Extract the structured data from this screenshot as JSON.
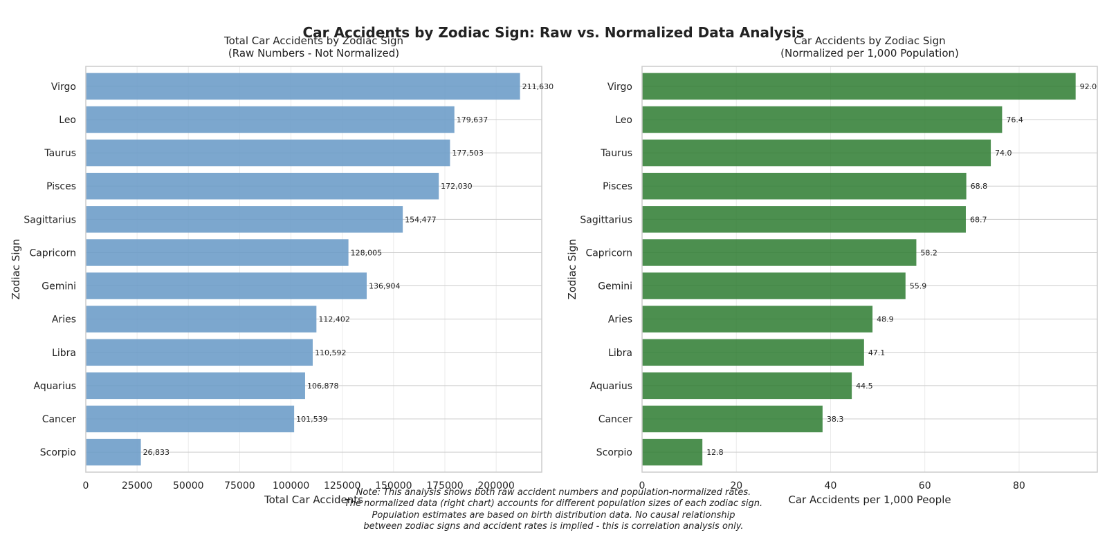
{
  "figure": {
    "title": "Car Accidents by Zodiac Sign: Raw vs. Normalized Data Analysis",
    "note_lines": [
      "Note: This analysis shows both raw accident numbers and population-normalized rates.",
      "The normalized data (right chart) accounts for different population sizes of each zodiac sign.",
      "Population estimates are based on birth distribution data. No causal relationship",
      "between zodiac signs and accident rates is implied - this is correlation analysis only."
    ]
  },
  "chart_data": [
    {
      "type": "bar",
      "orientation": "horizontal",
      "title": "Total Car Accidents by Zodiac Sign\n(Raw Numbers - Not Normalized)",
      "xlabel": "Total Car Accidents",
      "ylabel": "Zodiac Sign",
      "categories": [
        "Virgo",
        "Leo",
        "Taurus",
        "Pisces",
        "Sagittarius",
        "Capricorn",
        "Gemini",
        "Aries",
        "Libra",
        "Aquarius",
        "Cancer",
        "Scorpio"
      ],
      "values": [
        211630,
        179637,
        177503,
        172030,
        154477,
        128005,
        136904,
        112402,
        110592,
        106878,
        101539,
        26833
      ],
      "value_labels": [
        "211,630",
        "179,637",
        "177,503",
        "172,030",
        "154,477",
        "128,005",
        "136,904",
        "112,402",
        "110,592",
        "106,878",
        "101,539",
        "26,833"
      ],
      "xlim": [
        0,
        222211
      ],
      "xticks": [
        0,
        25000,
        50000,
        75000,
        100000,
        125000,
        150000,
        175000,
        200000
      ],
      "xtick_labels": [
        "0",
        "25000",
        "50000",
        "75000",
        "100000",
        "125000",
        "150000",
        "175000",
        "200000"
      ],
      "color": "#6a9bc7",
      "grid": true
    },
    {
      "type": "bar",
      "orientation": "horizontal",
      "title": "Car Accidents by Zodiac Sign\n(Normalized per 1,000 Population)",
      "xlabel": "Car Accidents per 1,000 People",
      "ylabel": "Zodiac Sign",
      "categories": [
        "Virgo",
        "Leo",
        "Taurus",
        "Pisces",
        "Sagittarius",
        "Capricorn",
        "Gemini",
        "Aries",
        "Libra",
        "Aquarius",
        "Cancer",
        "Scorpio"
      ],
      "values": [
        92.0,
        76.4,
        74.0,
        68.8,
        68.7,
        58.2,
        55.9,
        48.9,
        47.1,
        44.5,
        38.3,
        12.8
      ],
      "value_labels": [
        "92.0",
        "76.4",
        "74.0",
        "68.8",
        "68.7",
        "58.2",
        "55.9",
        "48.9",
        "47.1",
        "44.5",
        "38.3",
        "12.8"
      ],
      "xlim": [
        0,
        96.6
      ],
      "xticks": [
        0,
        20,
        40,
        60,
        80
      ],
      "xtick_labels": [
        "0",
        "20",
        "40",
        "60",
        "80"
      ],
      "color": "#2e7d32",
      "grid": true
    }
  ]
}
